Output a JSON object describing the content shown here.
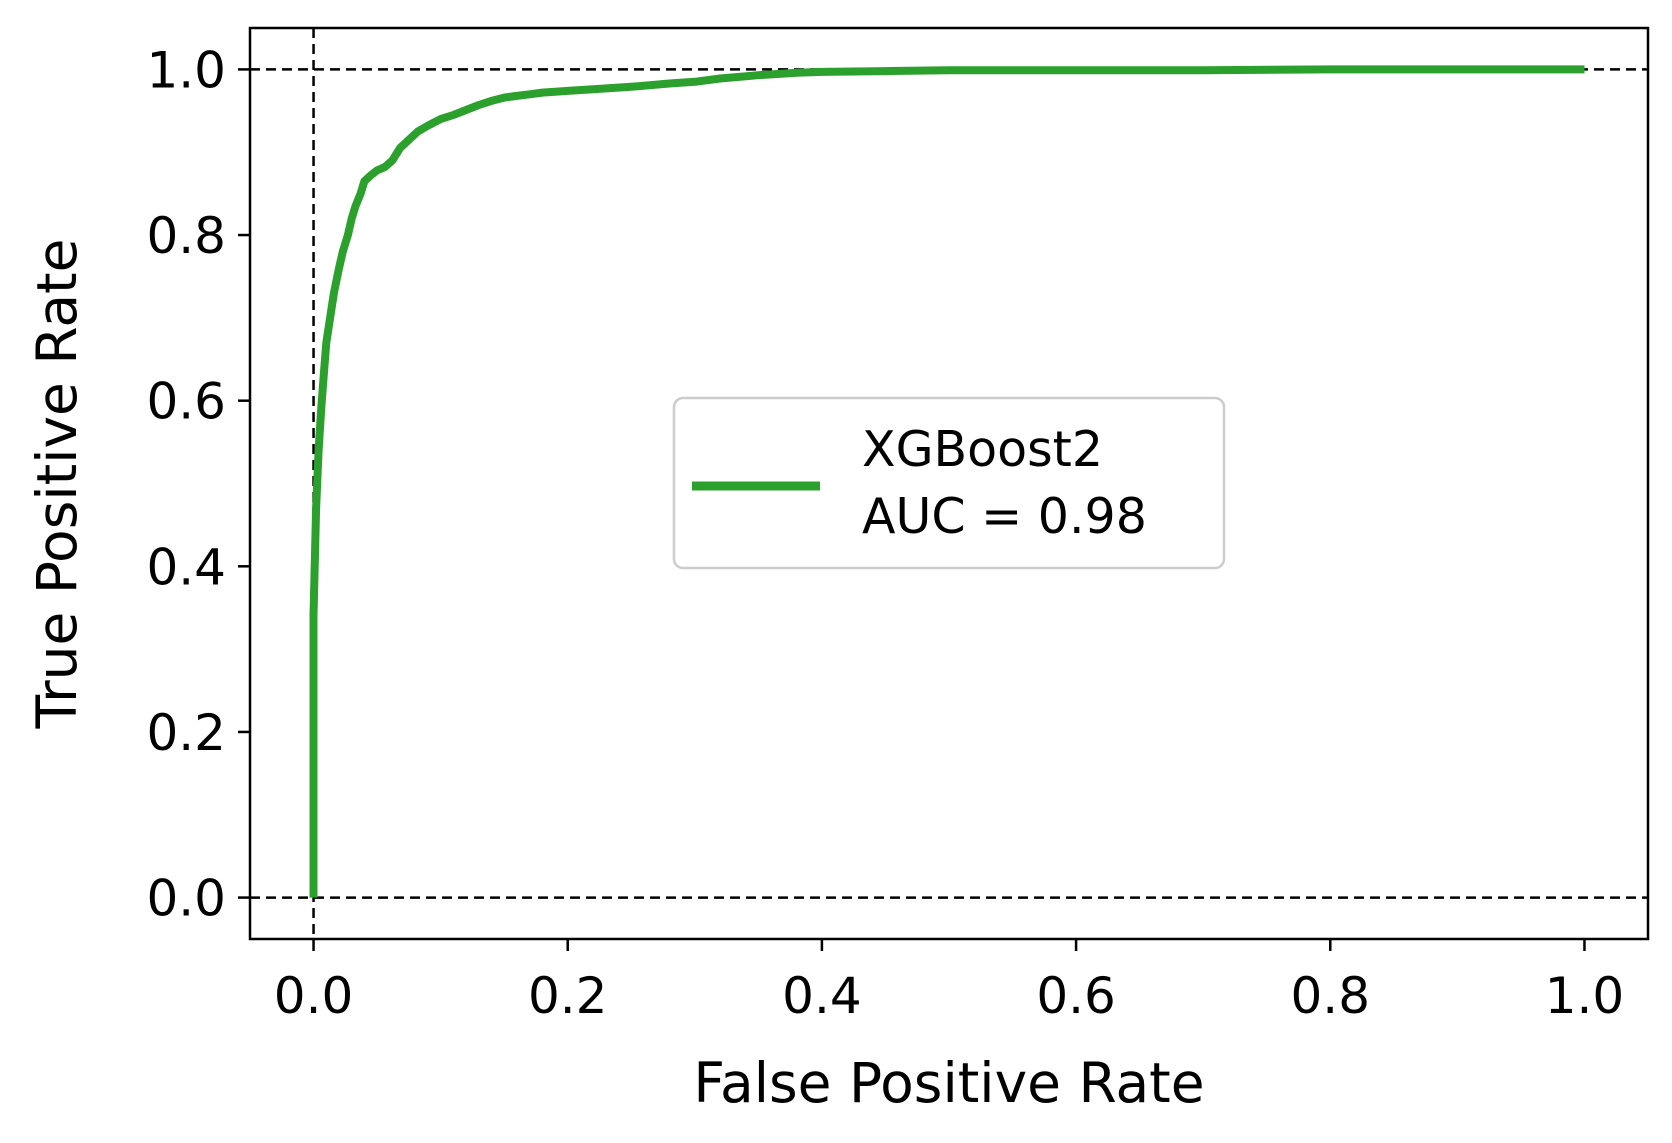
{
  "chart_data": {
    "type": "line",
    "title": "",
    "xlabel": "False Positive Rate",
    "ylabel": "True Positive Rate",
    "xlim": [
      -0.05,
      1.05
    ],
    "ylim": [
      -0.05,
      1.05
    ],
    "xticks": [
      0.0,
      0.2,
      0.4,
      0.6,
      0.8,
      1.0
    ],
    "xtick_labels": [
      "0.0",
      "0.2",
      "0.4",
      "0.6",
      "0.8",
      "1.0"
    ],
    "yticks": [
      0.0,
      0.2,
      0.4,
      0.6,
      0.8,
      1.0
    ],
    "ytick_labels": [
      "0.0",
      "0.2",
      "0.4",
      "0.6",
      "0.8",
      "1.0"
    ],
    "grid": false,
    "legend_position": "center",
    "reference_lines": [
      {
        "orientation": "horizontal",
        "value": 1.0,
        "style": "dashed",
        "color": "#000000"
      },
      {
        "orientation": "horizontal",
        "value": 0.0,
        "style": "dashed",
        "color": "#000000"
      },
      {
        "orientation": "vertical",
        "value": 0.0,
        "style": "dashed",
        "color": "#000000"
      }
    ],
    "series": [
      {
        "name": "XGBoost2",
        "label_line2": "AUC = 0.98",
        "color": "#2ca02c",
        "x": [
          0.0,
          0.0,
          0.002,
          0.004,
          0.006,
          0.008,
          0.01,
          0.013,
          0.016,
          0.02,
          0.023,
          0.027,
          0.03,
          0.033,
          0.037,
          0.04,
          0.045,
          0.05,
          0.056,
          0.062,
          0.068,
          0.075,
          0.082,
          0.09,
          0.1,
          0.11,
          0.12,
          0.13,
          0.14,
          0.15,
          0.16,
          0.17,
          0.18,
          0.2,
          0.22,
          0.25,
          0.28,
          0.3,
          0.32,
          0.35,
          0.38,
          0.4,
          0.45,
          0.5,
          0.6,
          0.7,
          0.8,
          0.9,
          1.0
        ],
        "y": [
          0.0,
          0.34,
          0.47,
          0.54,
          0.59,
          0.63,
          0.67,
          0.7,
          0.73,
          0.76,
          0.78,
          0.8,
          0.82,
          0.835,
          0.85,
          0.865,
          0.872,
          0.878,
          0.882,
          0.89,
          0.905,
          0.915,
          0.925,
          0.932,
          0.94,
          0.945,
          0.951,
          0.957,
          0.962,
          0.966,
          0.968,
          0.97,
          0.972,
          0.974,
          0.976,
          0.979,
          0.983,
          0.985,
          0.989,
          0.993,
          0.996,
          0.997,
          0.998,
          0.999,
          0.999,
          0.999,
          1.0,
          1.0,
          1.0
        ]
      }
    ]
  }
}
